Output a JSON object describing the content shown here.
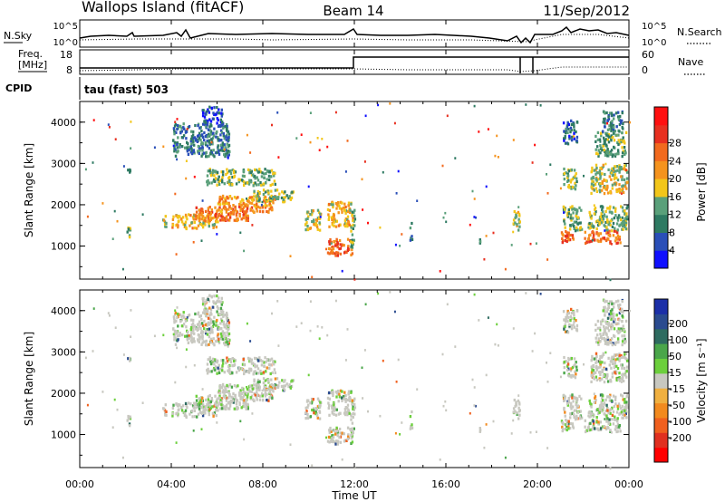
{
  "header": {
    "title": "Wallops Island (fitACF)",
    "beam": "Beam 14",
    "date": "11/Sep/2012"
  },
  "noise_panel": {
    "left_label": "N.Sky",
    "right_label": "N.Search",
    "ticks": [
      "10^5",
      "10^0"
    ]
  },
  "freq_panel": {
    "left_label_1": "Freq.",
    "left_label_2": "[MHz]",
    "left_ticks": [
      "18",
      "8"
    ],
    "right_label": "Nave",
    "right_ticks": [
      "60",
      "0"
    ]
  },
  "cpid_panel": {
    "label": "CPID",
    "program": "tau (fast) 503"
  },
  "x_axis": {
    "label": "Time UT",
    "ticks": [
      "00:00",
      "04:00",
      "08:00",
      "12:00",
      "16:00",
      "20:00",
      "00:00"
    ]
  },
  "y_axis": {
    "label": "Slant Range [km]",
    "ticks": [
      "1000",
      "2000",
      "3000",
      "4000"
    ]
  },
  "power_colorbar": {
    "label": "Power [dB]",
    "ticks": [
      "4",
      "8",
      "12",
      "16",
      "20",
      "24",
      "28"
    ]
  },
  "velocity_colorbar": {
    "label": "Velocity [m s⁻¹]",
    "ticks": [
      "200",
      "100",
      "50",
      "15",
      "-15",
      "-50",
      "-100",
      "-200"
    ]
  },
  "colors": {
    "power": [
      "#1010ff",
      "#2a4fb8",
      "#2e7a62",
      "#5aa07a",
      "#f2c61a",
      "#f5931e",
      "#f26a1e",
      "#e83020",
      "#ff1010"
    ],
    "velocity": [
      "#1b2fa8",
      "#2a4b8f",
      "#2e6b60",
      "#4aa64a",
      "#6ccf3c",
      "#c8c8c0",
      "#f0b040",
      "#f28a1e",
      "#f0601e",
      "#e03020",
      "#ff0000"
    ]
  },
  "chart_data": {
    "type": "heatmap",
    "xlim": [
      0,
      24
    ],
    "ylim": [
      200,
      4500
    ],
    "series": [
      {
        "t0": 2.0,
        "t1": 2.2,
        "r0": 1200,
        "r1": 1500,
        "p": 14
      },
      {
        "t0": 2.0,
        "t1": 2.2,
        "r0": 2800,
        "r1": 3000,
        "p": 10
      },
      {
        "t0": 3.6,
        "t1": 3.8,
        "r0": 1500,
        "r1": 1800,
        "p": 16
      },
      {
        "t0": 4.0,
        "t1": 6.0,
        "r0": 1450,
        "r1": 1800,
        "p": 20
      },
      {
        "t0": 5.0,
        "t1": 7.5,
        "r0": 1650,
        "r1": 2000,
        "p": 25
      },
      {
        "t0": 6.0,
        "t1": 8.5,
        "r0": 1850,
        "r1": 2250,
        "p": 22
      },
      {
        "t0": 7.5,
        "t1": 9.3,
        "r0": 2100,
        "r1": 2400,
        "p": 15
      },
      {
        "t0": 5.5,
        "t1": 8.5,
        "r0": 2500,
        "r1": 2900,
        "p": 14
      },
      {
        "t0": 4.0,
        "t1": 6.5,
        "r0": 3200,
        "r1": 4000,
        "p": 9
      },
      {
        "t0": 5.3,
        "t1": 6.2,
        "r0": 4000,
        "r1": 4400,
        "p": 6
      },
      {
        "t0": 9.8,
        "t1": 10.5,
        "r0": 1400,
        "r1": 1900,
        "p": 18
      },
      {
        "t0": 10.8,
        "t1": 11.9,
        "r0": 800,
        "r1": 1200,
        "p": 27
      },
      {
        "t0": 10.8,
        "t1": 11.9,
        "r0": 1500,
        "r1": 2100,
        "p": 20
      },
      {
        "t0": 11.8,
        "t1": 12.0,
        "r0": 1000,
        "r1": 1900,
        "p": 14
      },
      {
        "t0": 14.4,
        "t1": 14.5,
        "r0": 1100,
        "r1": 1600,
        "p": 10
      },
      {
        "t0": 17.4,
        "t1": 17.5,
        "r0": 1100,
        "r1": 1300,
        "p": 9
      },
      {
        "t0": 18.9,
        "t1": 19.2,
        "r0": 1400,
        "r1": 1900,
        "p": 16
      },
      {
        "t0": 21.0,
        "t1": 21.6,
        "r0": 1100,
        "r1": 1400,
        "p": 26
      },
      {
        "t0": 21.1,
        "t1": 21.9,
        "r0": 1400,
        "r1": 2000,
        "p": 14
      },
      {
        "t0": 21.1,
        "t1": 21.7,
        "r0": 2400,
        "r1": 2900,
        "p": 15
      },
      {
        "t0": 21.1,
        "t1": 21.7,
        "r0": 3500,
        "r1": 4100,
        "p": 8
      },
      {
        "t0": 22.0,
        "t1": 23.6,
        "r0": 1100,
        "r1": 1400,
        "p": 26
      },
      {
        "t0": 22.2,
        "t1": 23.9,
        "r0": 1400,
        "r1": 2000,
        "p": 15
      },
      {
        "t0": 22.3,
        "t1": 23.9,
        "r0": 2300,
        "r1": 3000,
        "p": 17
      },
      {
        "t0": 22.5,
        "t1": 23.9,
        "r0": 3200,
        "r1": 3800,
        "p": 14
      },
      {
        "t0": 22.8,
        "t1": 23.7,
        "r0": 3800,
        "r1": 4300,
        "p": 9
      }
    ]
  }
}
